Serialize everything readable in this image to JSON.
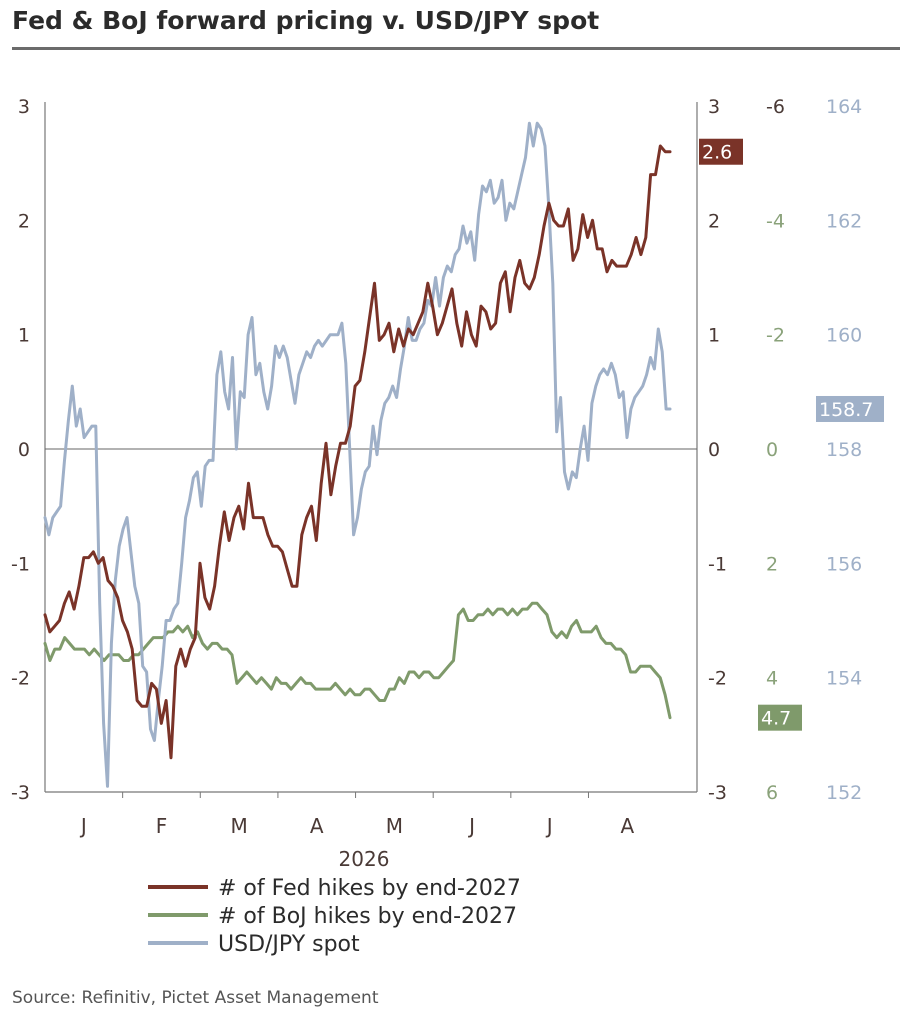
{
  "title": "Fed & BoJ forward pricing v. USD/JPY spot",
  "source": "Source: Refinitiv, Pictet Asset Management",
  "chart_data": {
    "type": "line",
    "x_tick_labels": [
      "J",
      "F",
      "M",
      "A",
      "M",
      "J",
      "J",
      "A"
    ],
    "x_year_label": "2026",
    "axes": {
      "fed_left": {
        "ylim": [
          -3,
          3
        ],
        "ticks": [
          "3",
          "2",
          "1",
          "0",
          "-1",
          "-2",
          "-3"
        ]
      },
      "fed_right": {
        "ylim": [
          -3,
          3
        ],
        "ticks": [
          "3",
          "2",
          "1",
          "0",
          "-1",
          "-2",
          "-3"
        ]
      },
      "boj_right_inverted": {
        "ylim": [
          -6,
          6
        ],
        "inverted": true,
        "ticks": [
          "-6",
          "-4",
          "-2",
          "0",
          "2",
          "4",
          "6"
        ]
      },
      "usdjpy_right": {
        "ylim": [
          152,
          164
        ],
        "ticks": [
          "164",
          "162",
          "160",
          "158",
          "156",
          "154",
          "152"
        ]
      }
    },
    "zero_line": true,
    "grid": false,
    "legend_placement": "bottom",
    "series": [
      {
        "name": "# of Fed hikes by end-2027",
        "axis": "fed",
        "color": "#7a3328",
        "end_label": "2.6",
        "values": [
          -1.45,
          -1.6,
          -1.55,
          -1.5,
          -1.35,
          -1.25,
          -1.4,
          -1.2,
          -0.95,
          -0.95,
          -0.9,
          -1.0,
          -0.95,
          -1.15,
          -1.2,
          -1.3,
          -1.5,
          -1.6,
          -1.75,
          -2.2,
          -2.25,
          -2.25,
          -2.05,
          -2.1,
          -2.4,
          -2.2,
          -2.7,
          -1.9,
          -1.75,
          -1.9,
          -1.75,
          -1.65,
          -1.0,
          -1.3,
          -1.4,
          -1.2,
          -0.85,
          -0.55,
          -0.8,
          -0.6,
          -0.5,
          -0.7,
          -0.3,
          -0.6,
          -0.6,
          -0.6,
          -0.75,
          -0.85,
          -0.85,
          -0.9,
          -1.05,
          -1.2,
          -1.2,
          -0.75,
          -0.6,
          -0.5,
          -0.8,
          -0.3,
          0.05,
          -0.4,
          -0.15,
          0.05,
          0.05,
          0.2,
          0.55,
          0.6,
          0.85,
          1.15,
          1.45,
          0.95,
          1.0,
          1.1,
          0.85,
          1.05,
          0.9,
          1.05,
          1.0,
          1.1,
          1.2,
          1.45,
          1.25,
          1.0,
          1.1,
          1.25,
          1.4,
          1.1,
          0.9,
          1.2,
          1.0,
          0.9,
          1.25,
          1.2,
          1.05,
          1.1,
          1.45,
          1.55,
          1.2,
          1.5,
          1.65,
          1.45,
          1.4,
          1.5,
          1.7,
          1.95,
          2.15,
          2.0,
          1.95,
          1.95,
          2.1,
          1.65,
          1.75,
          2.05,
          1.85,
          2.0,
          1.75,
          1.75,
          1.55,
          1.65,
          1.6,
          1.6,
          1.6,
          1.7,
          1.85,
          1.7,
          1.85,
          2.4,
          2.4,
          2.65,
          2.6,
          2.6
        ]
      },
      {
        "name": "# of BoJ hikes by end-2027",
        "axis": "boj",
        "color": "#7f9a6b",
        "end_label": "4.7",
        "values": [
          3.4,
          3.7,
          3.5,
          3.5,
          3.3,
          3.4,
          3.5,
          3.5,
          3.5,
          3.6,
          3.5,
          3.6,
          3.7,
          3.6,
          3.6,
          3.6,
          3.7,
          3.7,
          3.6,
          3.6,
          3.5,
          3.4,
          3.3,
          3.3,
          3.3,
          3.2,
          3.2,
          3.1,
          3.2,
          3.1,
          3.3,
          3.2,
          3.4,
          3.5,
          3.4,
          3.4,
          3.5,
          3.5,
          3.6,
          4.1,
          4.0,
          3.9,
          4.0,
          4.1,
          4.0,
          4.1,
          4.2,
          4.0,
          4.1,
          4.1,
          4.2,
          4.1,
          4.0,
          4.1,
          4.1,
          4.2,
          4.2,
          4.2,
          4.2,
          4.1,
          4.2,
          4.3,
          4.2,
          4.3,
          4.3,
          4.2,
          4.2,
          4.3,
          4.4,
          4.4,
          4.2,
          4.2,
          4.0,
          4.1,
          3.9,
          3.9,
          4.0,
          3.9,
          3.9,
          4.0,
          4.0,
          3.9,
          3.8,
          3.7,
          2.9,
          2.8,
          3.0,
          3.0,
          2.9,
          2.9,
          2.8,
          2.9,
          2.8,
          2.8,
          2.9,
          2.8,
          2.9,
          2.8,
          2.8,
          2.7,
          2.7,
          2.8,
          2.9,
          3.2,
          3.3,
          3.2,
          3.3,
          3.1,
          3.0,
          3.2,
          3.2,
          3.2,
          3.1,
          3.3,
          3.4,
          3.4,
          3.5,
          3.5,
          3.6,
          3.9,
          3.9,
          3.8,
          3.8,
          3.8,
          3.9,
          4.0,
          4.3,
          4.7
        ]
      },
      {
        "name": "USD/JPY spot",
        "axis": "usdjpy",
        "color": "#9fb0c8",
        "end_label": "158.7",
        "values": [
          156.8,
          156.5,
          156.8,
          156.9,
          157.0,
          157.8,
          158.5,
          159.1,
          158.4,
          158.7,
          158.2,
          158.3,
          158.4,
          158.4,
          155.3,
          153.2,
          152.1,
          154.6,
          155.7,
          156.3,
          156.6,
          156.8,
          156.2,
          155.6,
          155.3,
          154.2,
          154.1,
          153.1,
          152.9,
          153.6,
          154.2,
          155.0,
          155.0,
          155.2,
          155.3,
          156.0,
          156.8,
          157.1,
          157.5,
          157.6,
          157.0,
          157.7,
          157.8,
          157.8,
          159.3,
          159.7,
          159.0,
          158.7,
          159.6,
          158.0,
          159.0,
          158.9,
          160.0,
          160.3,
          159.3,
          159.5,
          159.0,
          158.7,
          159.1,
          159.8,
          159.6,
          159.8,
          159.6,
          159.2,
          158.8,
          159.3,
          159.5,
          159.7,
          159.6,
          159.8,
          159.9,
          159.8,
          159.9,
          160.0,
          160.0,
          160.0,
          160.2,
          159.5,
          158.0,
          156.5,
          156.8,
          157.3,
          157.6,
          157.7,
          158.4,
          157.9,
          158.5,
          158.8,
          158.9,
          159.1,
          158.9,
          159.4,
          159.8,
          160.3,
          159.9,
          159.9,
          160.1,
          160.2,
          160.6,
          160.5,
          161.0,
          160.5,
          161.0,
          161.2,
          161.1,
          161.4,
          161.5,
          161.9,
          161.6,
          161.8,
          161.3,
          162.1,
          162.6,
          162.5,
          162.7,
          162.3,
          162.4,
          162.7,
          162.0,
          162.3,
          162.2,
          162.5,
          162.8,
          163.1,
          163.7,
          163.3,
          163.7,
          163.6,
          163.3,
          162.2,
          160.9,
          158.3,
          158.9,
          157.6,
          157.3,
          157.6,
          157.5,
          158.0,
          158.4,
          157.8,
          158.8,
          159.1,
          159.3,
          159.4,
          159.3,
          159.5,
          159.3,
          158.9,
          159.0,
          158.2,
          158.7,
          158.9,
          159.0,
          159.1,
          159.3,
          159.6,
          159.4,
          160.1,
          159.7,
          158.7,
          158.7
        ]
      }
    ]
  }
}
